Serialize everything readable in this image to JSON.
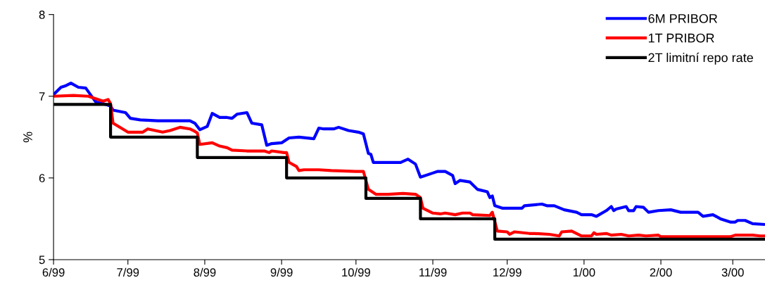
{
  "chart_data": {
    "type": "line",
    "ylabel": "%",
    "xlim": [
      "1999-06-01",
      "2000-03-14"
    ],
    "xticks": [
      {
        "value": "1999-06-01",
        "label": "6/99"
      },
      {
        "value": "1999-07-01",
        "label": "7/99"
      },
      {
        "value": "1999-08-01",
        "label": "8/99"
      },
      {
        "value": "1999-09-01",
        "label": "9/99"
      },
      {
        "value": "1999-10-01",
        "label": "10/99"
      },
      {
        "value": "1999-11-01",
        "label": "11/99"
      },
      {
        "value": "1999-12-01",
        "label": "12/99"
      },
      {
        "value": "2000-01-01",
        "label": "1/00"
      },
      {
        "value": "2000-02-01",
        "label": "2/00"
      },
      {
        "value": "2000-03-01",
        "label": "3/00"
      }
    ],
    "ylim": [
      5,
      8
    ],
    "yticks": [
      5,
      6,
      7,
      8
    ],
    "grid": false,
    "legend": "top right",
    "marker": "none",
    "line_style": "solid",
    "series": [
      {
        "name": "6M PRIBOR",
        "color": "#0000ff",
        "x": [
          "1999-06-01",
          "1999-06-04",
          "1999-06-06",
          "1999-06-08",
          "1999-06-11",
          "1999-06-14",
          "1999-06-18",
          "1999-06-22",
          "1999-06-24",
          "1999-06-25",
          "1999-06-30",
          "1999-07-02",
          "1999-07-06",
          "1999-07-13",
          "1999-07-26",
          "1999-07-28",
          "1999-07-30",
          "1999-08-02",
          "1999-08-04",
          "1999-08-07",
          "1999-08-10",
          "1999-08-12",
          "1999-08-14",
          "1999-08-18",
          "1999-08-20",
          "1999-08-24",
          "1999-08-26",
          "1999-08-28",
          "1999-09-01",
          "1999-09-04",
          "1999-09-08",
          "1999-09-14",
          "1999-09-16",
          "1999-09-18",
          "1999-09-22",
          "1999-09-24",
          "1999-09-28",
          "1999-10-02",
          "1999-10-04",
          "1999-10-06",
          "1999-10-07",
          "1999-10-08",
          "1999-10-12",
          "1999-10-19",
          "1999-10-22",
          "1999-10-25",
          "1999-10-27",
          "1999-11-01",
          "1999-11-03",
          "1999-11-06",
          "1999-11-09",
          "1999-11-10",
          "1999-11-12",
          "1999-11-16",
          "1999-11-19",
          "1999-11-23",
          "1999-11-24",
          "1999-11-25",
          "1999-11-26",
          "1999-11-29",
          "1999-12-07",
          "1999-12-08",
          "1999-12-15",
          "1999-12-17",
          "1999-12-20",
          "1999-12-24",
          "1999-12-29",
          "1999-12-31",
          "2000-01-04",
          "2000-01-06",
          "2000-01-10",
          "2000-01-12",
          "2000-01-13",
          "2000-01-14",
          "2000-01-18",
          "2000-01-19",
          "2000-01-21",
          "2000-01-22",
          "2000-01-25",
          "2000-01-27",
          "2000-01-31",
          "2000-02-05",
          "2000-02-09",
          "2000-02-16",
          "2000-02-18",
          "2000-02-22",
          "2000-02-25",
          "2000-02-29",
          "2000-03-02",
          "2000-03-03",
          "2000-03-06",
          "2000-03-09",
          "2000-03-14"
        ],
        "values": [
          7.02,
          7.11,
          7.13,
          7.16,
          7.11,
          7.1,
          6.93,
          6.9,
          6.88,
          6.83,
          6.8,
          6.73,
          6.71,
          6.7,
          6.7,
          6.67,
          6.59,
          6.63,
          6.79,
          6.74,
          6.74,
          6.73,
          6.78,
          6.8,
          6.67,
          6.65,
          6.4,
          6.42,
          6.43,
          6.49,
          6.5,
          6.48,
          6.61,
          6.6,
          6.6,
          6.62,
          6.58,
          6.56,
          6.54,
          6.3,
          6.29,
          6.19,
          6.19,
          6.19,
          6.23,
          6.17,
          6.01,
          6.06,
          6.08,
          6.08,
          6.03,
          5.93,
          5.97,
          5.95,
          5.86,
          5.83,
          5.76,
          5.78,
          5.66,
          5.63,
          5.63,
          5.66,
          5.68,
          5.66,
          5.66,
          5.61,
          5.58,
          5.55,
          5.55,
          5.53,
          5.6,
          5.65,
          5.6,
          5.62,
          5.65,
          5.6,
          5.6,
          5.65,
          5.64,
          5.58,
          5.6,
          5.61,
          5.58,
          5.58,
          5.53,
          5.55,
          5.5,
          5.46,
          5.46,
          5.48,
          5.48,
          5.44,
          5.43
        ]
      },
      {
        "name": "1T PRIBOR",
        "color": "#ff0000",
        "x": [
          "1999-06-01",
          "1999-06-09",
          "1999-06-15",
          "1999-06-21",
          "1999-06-23",
          "1999-06-24",
          "1999-06-25",
          "1999-07-01",
          "1999-07-07",
          "1999-07-09",
          "1999-07-15",
          "1999-07-18",
          "1999-07-22",
          "1999-07-26",
          "1999-07-28",
          "1999-07-29",
          "1999-07-30",
          "1999-08-04",
          "1999-08-07",
          "1999-08-10",
          "1999-08-12",
          "1999-08-18",
          "1999-08-25",
          "1999-08-27",
          "1999-08-28",
          "1999-09-02",
          "1999-09-03",
          "1999-09-04",
          "1999-09-07",
          "1999-09-08",
          "1999-09-10",
          "1999-09-16",
          "1999-09-21",
          "1999-10-01",
          "1999-10-04",
          "1999-10-06",
          "1999-10-09",
          "1999-10-14",
          "1999-10-20",
          "1999-10-25",
          "1999-10-27",
          "1999-10-28",
          "1999-11-01",
          "1999-11-04",
          "1999-11-06",
          "1999-11-10",
          "1999-11-13",
          "1999-11-16",
          "1999-11-17",
          "1999-11-24",
          "1999-11-25",
          "1999-11-27",
          "1999-12-01",
          "1999-12-02",
          "1999-12-04",
          "1999-12-10",
          "1999-12-12",
          "1999-12-18",
          "1999-12-22",
          "1999-12-23",
          "1999-12-27",
          "1999-12-31",
          "2000-01-04",
          "2000-01-05",
          "2000-01-06",
          "2000-01-10",
          "2000-01-12",
          "2000-01-16",
          "2000-01-19",
          "2000-01-23",
          "2000-01-26",
          "2000-01-31",
          "2000-02-01",
          "2000-02-29",
          "2000-03-02",
          "2000-03-09",
          "2000-03-12",
          "2000-03-14"
        ],
        "values": [
          7.0,
          7.01,
          7.0,
          6.94,
          6.96,
          6.91,
          6.67,
          6.56,
          6.56,
          6.6,
          6.56,
          6.58,
          6.62,
          6.6,
          6.57,
          6.55,
          6.41,
          6.43,
          6.39,
          6.37,
          6.34,
          6.33,
          6.33,
          6.31,
          6.33,
          6.31,
          6.31,
          6.19,
          6.14,
          6.09,
          6.1,
          6.1,
          6.09,
          6.08,
          6.08,
          5.86,
          5.8,
          5.8,
          5.81,
          5.8,
          5.76,
          5.63,
          5.57,
          5.56,
          5.57,
          5.55,
          5.57,
          5.57,
          5.55,
          5.54,
          5.58,
          5.35,
          5.34,
          5.31,
          5.34,
          5.32,
          5.32,
          5.31,
          5.29,
          5.34,
          5.35,
          5.29,
          5.29,
          5.33,
          5.31,
          5.32,
          5.3,
          5.31,
          5.29,
          5.3,
          5.29,
          5.3,
          5.28,
          5.28,
          5.3,
          5.3,
          5.29,
          5.29
        ]
      },
      {
        "name": "2T limitní repo rate",
        "color": "#000000",
        "type": "step",
        "x": [
          "1999-06-01",
          "1999-06-24",
          "1999-07-29",
          "1999-09-03",
          "1999-10-05",
          "1999-10-27",
          "1999-11-26",
          "2000-03-14"
        ],
        "values": [
          6.9,
          6.5,
          6.25,
          6.0,
          5.75,
          5.5,
          5.25,
          5.25
        ]
      }
    ]
  }
}
